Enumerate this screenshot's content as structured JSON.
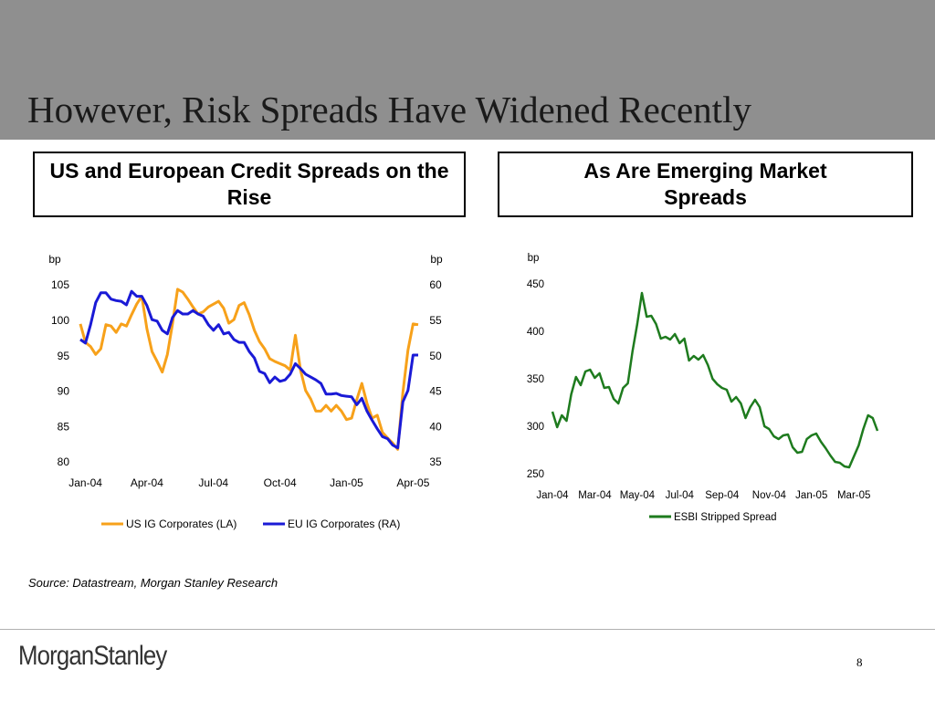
{
  "title": "However, Risk Spreads Have Widened Recently",
  "boxes": [
    "US and European Credit Spreads on the Rise",
    "As Are Emerging Market Spreads"
  ],
  "source": "Source: Datastream, Morgan Stanley Research",
  "logo": "MorganStanley",
  "page_number": "8",
  "chart_data": [
    {
      "type": "line",
      "y_label": "bp",
      "y2_label": "bp",
      "categories": [
        null,
        "Jan-04",
        null,
        null,
        null,
        null,
        null,
        null,
        null,
        null,
        null,
        null,
        null,
        "Apr-04",
        null,
        null,
        null,
        null,
        null,
        null,
        null,
        null,
        null,
        null,
        null,
        null,
        "Jul-04",
        null,
        null,
        null,
        null,
        null,
        null,
        null,
        null,
        null,
        null,
        null,
        null,
        "Oct-04",
        null,
        null,
        null,
        null,
        null,
        null,
        null,
        null,
        null,
        null,
        null,
        null,
        "Jan-05",
        null,
        null,
        null,
        null,
        null,
        null,
        null,
        null,
        null,
        null,
        null,
        null,
        "Apr-05",
        null
      ],
      "series": [
        {
          "name": "US IG Corporates (LA)",
          "color": "#f7a11a",
          "values": [
            99.6,
            97.0,
            96.4,
            95.3,
            96.1,
            99.5,
            99.3,
            98.4,
            99.6,
            99.3,
            100.9,
            102.4,
            103.5,
            98.9,
            95.7,
            94.3,
            92.8,
            95.3,
            99.6,
            104.5,
            104.1,
            103.1,
            102.0,
            101.0,
            101.3,
            102.0,
            102.4,
            102.8,
            101.8,
            99.7,
            100.2,
            102.2,
            102.6,
            100.9,
            98.7,
            97.1,
            96.1,
            94.7,
            94.3,
            94.0,
            93.7,
            93.1,
            98.0,
            93.1,
            90.2,
            89.0,
            87.3,
            87.3,
            88.1,
            87.3,
            88.1,
            87.3,
            86.1,
            86.3,
            88.9,
            91.2,
            88.4,
            86.3,
            86.7,
            84.3,
            83.5,
            82.8,
            81.9,
            89.9,
            95.9,
            99.6,
            99.5
          ]
        },
        {
          "name": "EU IG Corporates (RA)",
          "color": "#1a1ad6",
          "axis": "y2",
          "values": [
            52.4,
            51.9,
            54.5,
            57.6,
            59.0,
            59.0,
            58.1,
            57.9,
            57.8,
            57.3,
            59.2,
            58.5,
            58.5,
            57.2,
            55.2,
            55.0,
            53.7,
            53.2,
            55.5,
            56.5,
            56.0,
            56.0,
            56.5,
            56.0,
            55.7,
            54.5,
            53.7,
            54.5,
            53.2,
            53.4,
            52.4,
            52.0,
            52.0,
            50.7,
            49.8,
            47.9,
            47.6,
            46.3,
            47.1,
            46.5,
            46.7,
            47.5,
            49.0,
            48.3,
            47.5,
            47.1,
            46.7,
            46.2,
            44.7,
            44.7,
            44.8,
            44.5,
            44.4,
            44.3,
            43.2,
            44.1,
            42.3,
            41.0,
            39.8,
            38.7,
            38.4,
            37.5,
            37.1,
            43.6,
            45.2,
            50.2,
            50.2
          ]
        }
      ],
      "ylim": [
        80,
        105
      ],
      "yticks": [
        80,
        85,
        90,
        95,
        100,
        105
      ],
      "y2lim": [
        35,
        60
      ],
      "y2ticks": [
        35,
        40,
        45,
        50,
        55,
        60
      ],
      "grid": false,
      "legend": "bottom"
    },
    {
      "type": "line",
      "y_label": "bp",
      "categories": [
        "Jan-04",
        null,
        null,
        null,
        null,
        null,
        null,
        null,
        null,
        "Mar-04",
        null,
        null,
        null,
        null,
        null,
        null,
        null,
        null,
        "May-04",
        null,
        null,
        null,
        null,
        null,
        null,
        null,
        null,
        "Jul-04",
        null,
        null,
        null,
        null,
        null,
        null,
        null,
        null,
        "Sep-04",
        null,
        null,
        null,
        null,
        null,
        null,
        null,
        null,
        null,
        "Nov-04",
        null,
        null,
        null,
        null,
        null,
        null,
        null,
        null,
        "Jan-05",
        null,
        null,
        null,
        null,
        null,
        null,
        null,
        null,
        "Mar-05",
        null,
        null,
        null,
        null,
        null
      ],
      "series": [
        {
          "name": "ESBI Stripped Spread",
          "color": "#1e7b1e",
          "values": [
            316.3,
            300.0,
            312.5,
            306.7,
            334.6,
            352.9,
            344.2,
            358.7,
            360.6,
            351.9,
            356.7,
            341.3,
            342.3,
            329.8,
            325.0,
            341.3,
            346.2,
            379.8,
            408.7,
            441.3,
            416.3,
            417.3,
            408.7,
            393.3,
            395.2,
            392.3,
            398.1,
            388.5,
            393.3,
            370.2,
            375.0,
            371.2,
            376.0,
            365.4,
            351.0,
            345.2,
            341.3,
            339.4,
            326.9,
            331.7,
            325.0,
            309.6,
            321.2,
            328.8,
            321.2,
            301.0,
            298.1,
            290.4,
            287.5,
            291.3,
            292.3,
            278.8,
            273.1,
            274.0,
            287.5,
            291.3,
            293.3,
            284.6,
            277.9,
            270.2,
            263.5,
            262.5,
            258.7,
            257.7,
            269.2,
            280.8,
            298.1,
            312.5,
            309.6,
            296.2
          ]
        }
      ],
      "ylim": [
        250,
        450
      ],
      "yticks": [
        250,
        300,
        350,
        400,
        450
      ],
      "grid": false,
      "legend": "bottom"
    }
  ]
}
